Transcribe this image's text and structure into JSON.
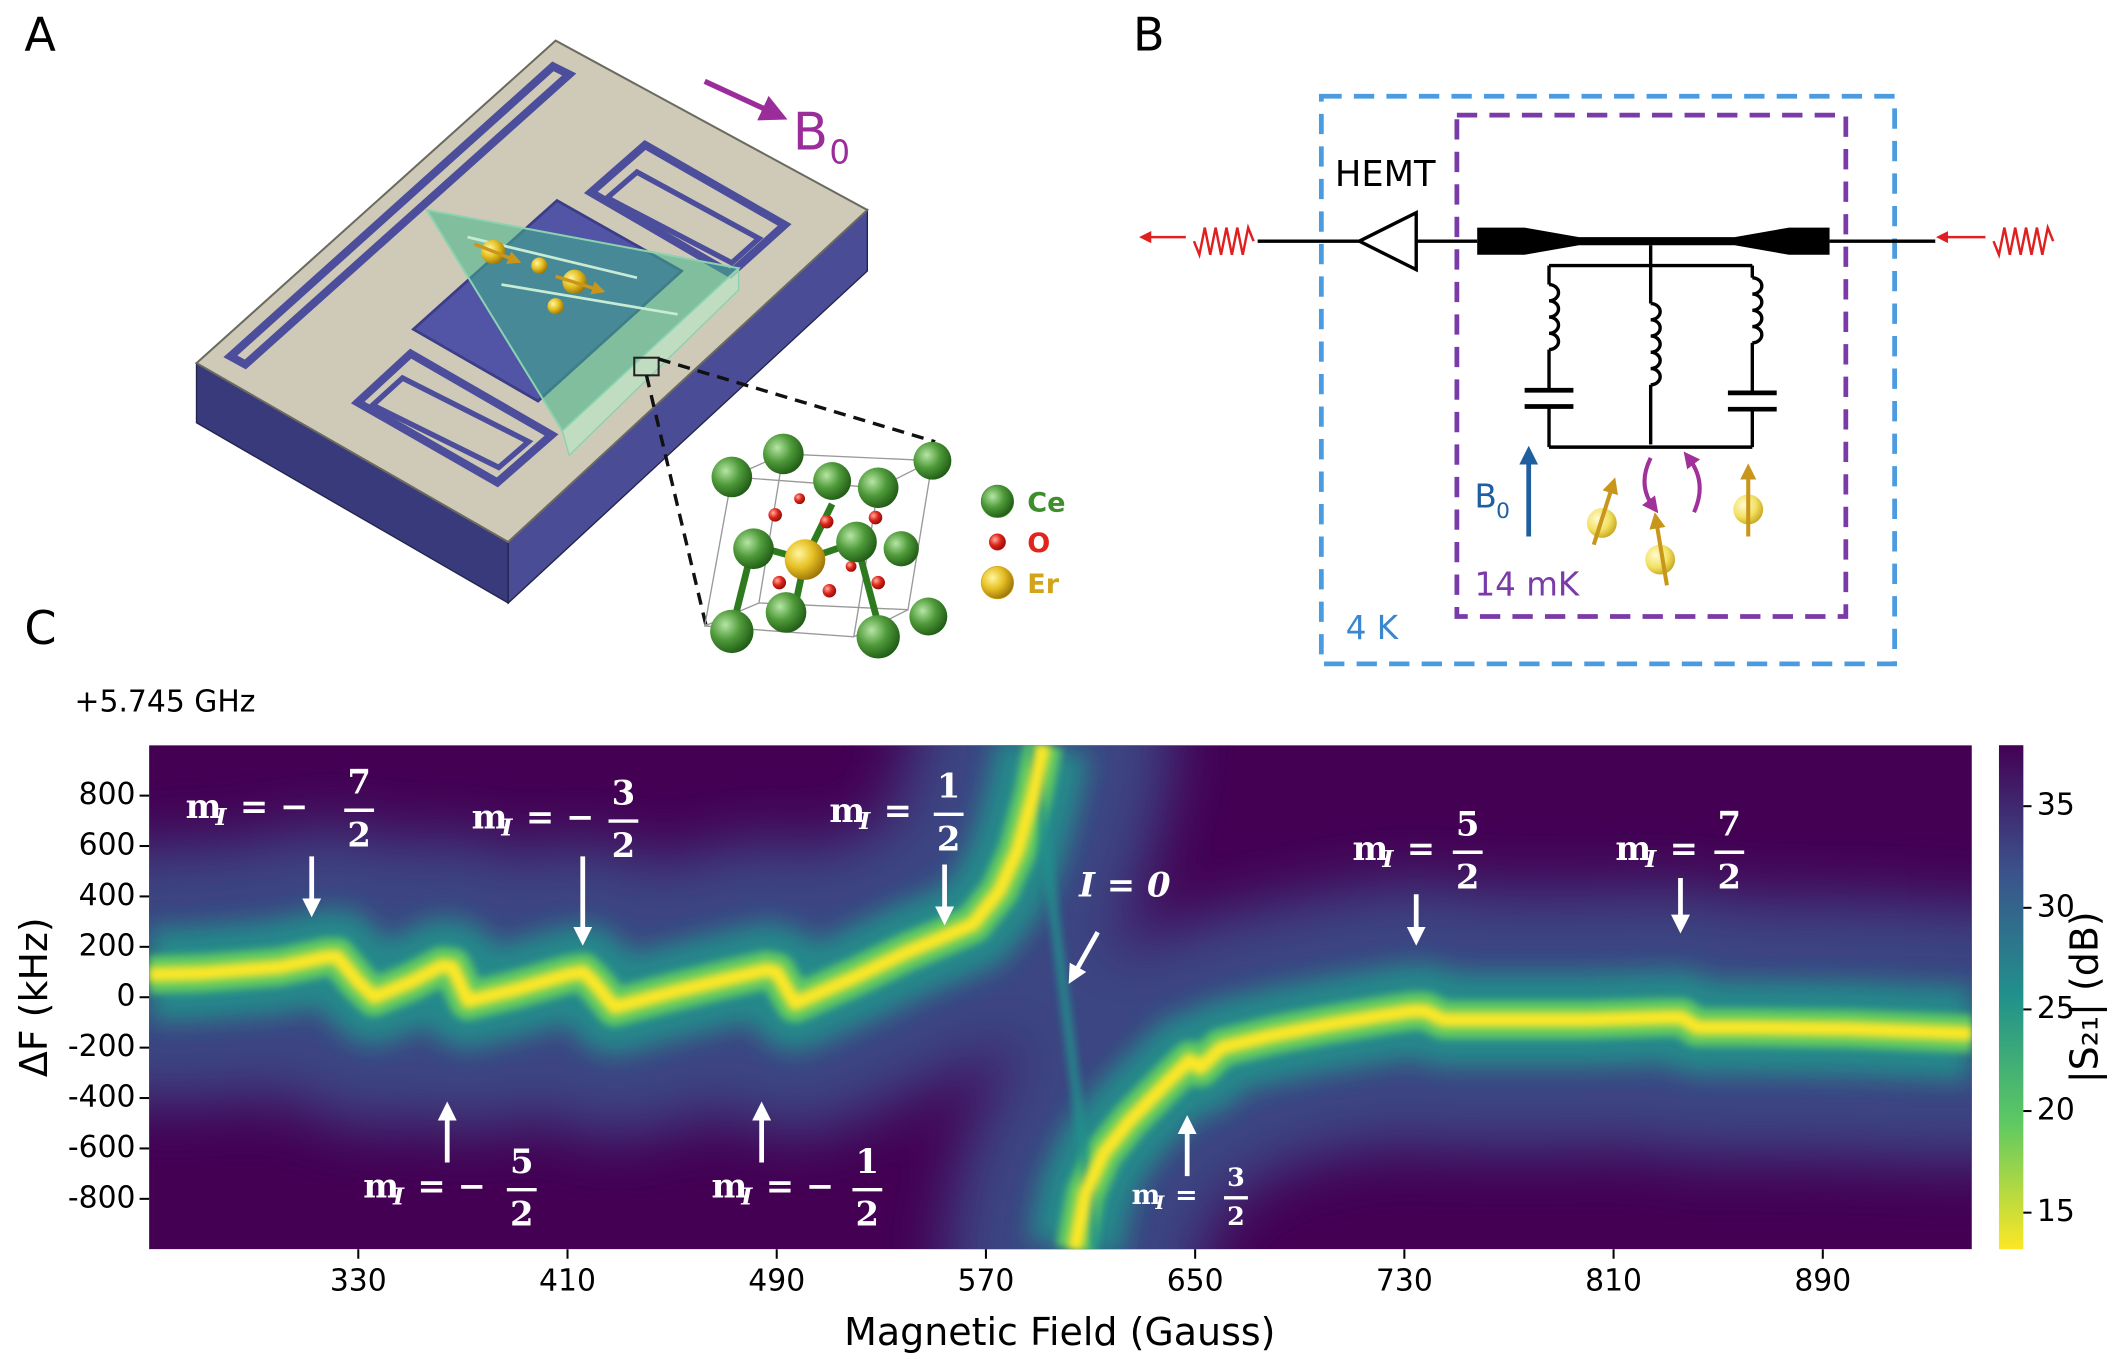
{
  "panel_labels": [
    "A",
    "B",
    "C"
  ],
  "panel_a": {
    "field_label": "B",
    "field_sub": "0",
    "legend": [
      {
        "label": "Ce",
        "color": "#3e8e2c"
      },
      {
        "label": "O",
        "color": "#e0261c"
      },
      {
        "label": "Er",
        "color": "#d4a418"
      }
    ]
  },
  "panel_b": {
    "amplifier": "HEMT",
    "field_label": "B",
    "field_sub": "0",
    "inner_temp": "14 mK",
    "outer_temp": "4 K"
  },
  "chart_data": {
    "type": "heatmap",
    "offset_label": "+5.745 GHz",
    "xlabel": "Magnetic Field (Gauss)",
    "ylabel": "ΔF (kHz)",
    "xlim": [
      250,
      947
    ],
    "ylim": [
      -1000,
      1000
    ],
    "xticks": [
      330,
      410,
      490,
      570,
      650,
      730,
      810,
      890
    ],
    "yticks": [
      -800,
      -600,
      -400,
      -200,
      0,
      200,
      400,
      600,
      800
    ],
    "series": [
      {
        "color": "#fde725",
        "x": [
          250,
          270,
          300,
          318,
          322,
          330,
          336,
          350,
          362,
          366,
          372,
          390,
          410,
          416,
          420,
          428,
          450,
          470,
          486,
          490,
          497,
          520,
          540,
          555,
          565,
          575,
          582,
          588,
          592,
          600,
          604,
          608,
          615,
          625,
          640,
          648,
          652,
          660,
          680,
          700,
          720,
          733,
          738,
          745,
          770,
          800,
          830,
          836,
          842,
          860,
          900,
          947
        ],
        "values": [
          90,
          95,
          120,
          160,
          160,
          60,
          0,
          60,
          125,
          120,
          -15,
          30,
          90,
          100,
          60,
          -40,
          20,
          70,
          108,
          100,
          -25,
          80,
          180,
          245,
          290,
          420,
          580,
          800,
          1000,
          null,
          -1000,
          -780,
          -620,
          -490,
          -330,
          -250,
          -280,
          -200,
          -150,
          -110,
          -75,
          -55,
          -55,
          -90,
          -90,
          -90,
          -80,
          -80,
          -120,
          -120,
          -125,
          -145
        ]
      },
      {
        "color": "#21918c",
        "x": [
          588,
          600,
          612
        ],
        "values": [
          1000,
          0,
          -1000
        ]
      }
    ],
    "colorbar": {
      "label": "|S₂₁| (dB)",
      "lim": [
        13.2,
        38
      ],
      "ticks": [
        15,
        20,
        25,
        30,
        35
      ],
      "colors": [
        "#fde725",
        "#5ec962",
        "#21918c",
        "#3b528b",
        "#440154"
      ]
    },
    "annotations": [
      {
        "m": "m",
        "sub": "I",
        "relation": "= −",
        "num": "7",
        "den": "2"
      },
      {
        "m": "m",
        "sub": "I",
        "relation": "= −",
        "num": "5",
        "den": "2"
      },
      {
        "m": "m",
        "sub": "I",
        "relation": "= −",
        "num": "3",
        "den": "2"
      },
      {
        "m": "m",
        "sub": "I",
        "relation": "= −",
        "num": "1",
        "den": "2"
      },
      {
        "m": "m",
        "sub": "I",
        "relation": "=",
        "num": "1",
        "den": "2"
      },
      {
        "m": "m",
        "sub": "I",
        "relation": "=",
        "num": "3",
        "den": "2"
      },
      {
        "m": "m",
        "sub": "I",
        "relation": "=",
        "num": "5",
        "den": "2"
      },
      {
        "m": "m",
        "sub": "I",
        "relation": "=",
        "num": "7",
        "den": "2"
      }
    ],
    "crossing_label": "I = 0"
  }
}
